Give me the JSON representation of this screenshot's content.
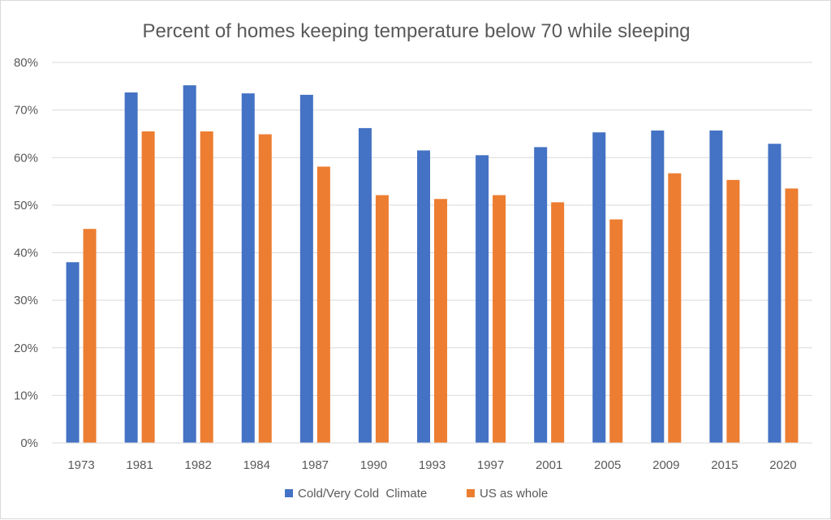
{
  "chart_data": {
    "type": "bar",
    "title": "Percent of homes keeping temperature below 70 while sleeping",
    "xlabel": "",
    "ylabel": "",
    "categories": [
      "1973",
      "1981",
      "1982",
      "1984",
      "1987",
      "1990",
      "1993",
      "1997",
      "2001",
      "2005",
      "2009",
      "2015",
      "2020"
    ],
    "series": [
      {
        "name": "Cold/Very Cold  Climate",
        "color": "#4472c4",
        "values": [
          38,
          73.7,
          75.2,
          73.5,
          73.2,
          66.2,
          61.5,
          60.5,
          62.2,
          65.3,
          65.7,
          65.7,
          62.9
        ]
      },
      {
        "name": "US as whole",
        "color": "#ed7d31",
        "values": [
          45,
          65.5,
          65.5,
          64.9,
          58.1,
          52.1,
          51.3,
          52.1,
          50.6,
          47,
          56.7,
          55.3,
          53.5
        ]
      }
    ],
    "ylim": [
      0,
      80
    ],
    "yticks": [
      0,
      10,
      20,
      30,
      40,
      50,
      60,
      70,
      80
    ],
    "ytick_labels": [
      "0%",
      "10%",
      "20%",
      "30%",
      "40%",
      "50%",
      "60%",
      "70%",
      "80%"
    ],
    "grid": true,
    "gridline_color": "#d9d9d9",
    "legend_position": "bottom"
  }
}
